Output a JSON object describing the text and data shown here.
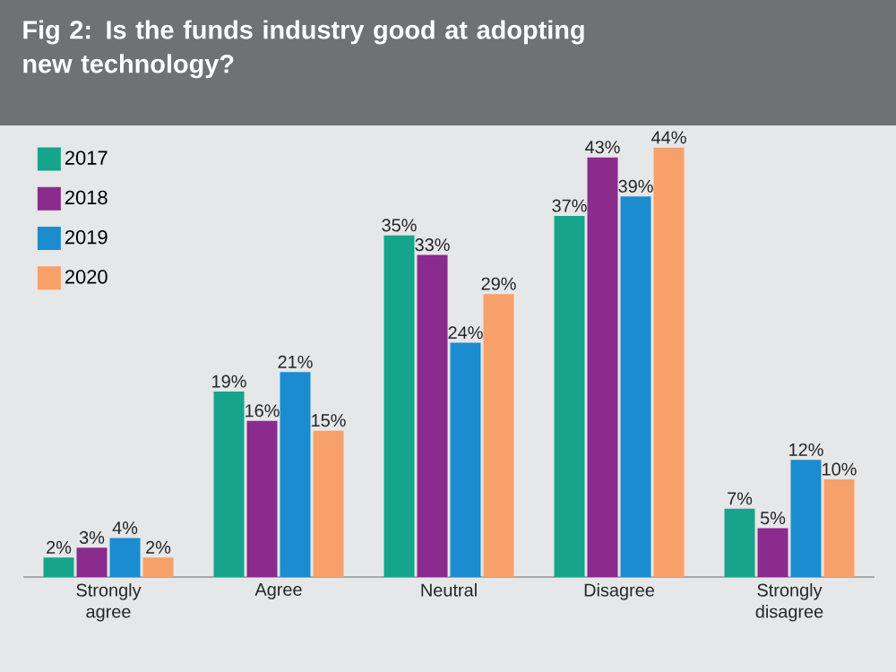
{
  "chart_data": {
    "type": "bar",
    "title": "Fig 2: Is the funds industry good at adopting new technology?",
    "categories": [
      "Strongly agree",
      "Agree",
      "Neutral",
      "Disagree",
      "Strongly disagree"
    ],
    "series": [
      {
        "name": "2017",
        "color": "#16a58c",
        "values": [
          2,
          19,
          35,
          37,
          7
        ],
        "value_labels": [
          "2%",
          "19%",
          "35%",
          "37%",
          "7%"
        ]
      },
      {
        "name": "2018",
        "color": "#8a2b8d",
        "values": [
          3,
          16,
          33,
          43,
          5
        ],
        "value_labels": [
          "3%",
          "16%",
          "33%",
          "43%",
          "5%"
        ]
      },
      {
        "name": "2019",
        "color": "#1b8ccf",
        "values": [
          4,
          21,
          24,
          39,
          12
        ],
        "value_labels": [
          "4%",
          "21%",
          "24%",
          "39%",
          "12%"
        ]
      },
      {
        "name": "2020",
        "color": "#f8a06a",
        "values": [
          2,
          15,
          29,
          44,
          10
        ],
        "value_labels": [
          "2%",
          "15%",
          "29%",
          "44%",
          "10%"
        ]
      }
    ],
    "legend": "top left",
    "grid": false
  }
}
